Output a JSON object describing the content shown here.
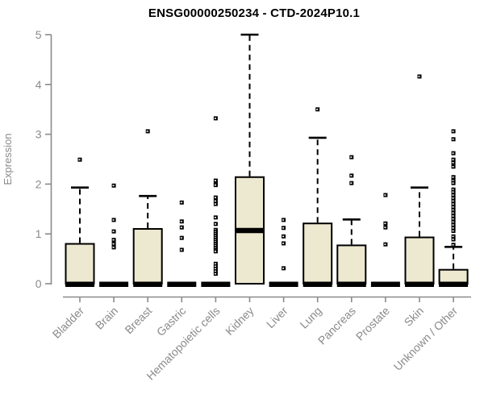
{
  "header": {
    "title": "ENSG00000250234 - CTD-2024P10.1"
  },
  "colors": {
    "box_fill": "#ede8d0",
    "box_stroke": "#000000",
    "axis": "#8a8a8a",
    "title": "#000000",
    "background": "#ffffff"
  },
  "chart_data": {
    "type": "boxplot",
    "title": "ENSG00000250234 - CTD-2024P10.1",
    "xlabel": "",
    "ylabel": "Expression",
    "ylim": [
      0,
      5
    ],
    "yticks": [
      0,
      1,
      2,
      3,
      4,
      5
    ],
    "grid": false,
    "legend": false,
    "categories": [
      "Bladder",
      "Brain",
      "Breast",
      "Gastric",
      "Hematopoietic cells",
      "Kidney",
      "Liver",
      "Lung",
      "Pancreas",
      "Prostate",
      "Skin",
      "Unknown / Other"
    ],
    "series": [
      {
        "name": "Bladder",
        "q1": 0,
        "median": 0,
        "q3": 0.8,
        "whisker_low": 0,
        "whisker_high": 1.93,
        "outliers": [
          2.49
        ]
      },
      {
        "name": "Brain",
        "q1": 0,
        "median": 0,
        "q3": 0,
        "whisker_low": 0,
        "whisker_high": 0,
        "outliers": [
          1.97,
          1.28,
          1.05,
          0.88,
          0.8,
          0.73
        ]
      },
      {
        "name": "Breast",
        "q1": 0,
        "median": 0,
        "q3": 1.1,
        "whisker_low": 0,
        "whisker_high": 1.76,
        "outliers": [
          3.06
        ]
      },
      {
        "name": "Gastric",
        "q1": 0,
        "median": 0,
        "q3": 0,
        "whisker_low": 0,
        "whisker_high": 0,
        "outliers": [
          1.63,
          1.25,
          1.13,
          0.92,
          0.68
        ]
      },
      {
        "name": "Hematopoietic cells",
        "q1": 0,
        "median": 0,
        "q3": 0,
        "whisker_low": 0,
        "whisker_high": 0,
        "outliers": [
          3.32,
          2.07,
          2.01,
          1.98,
          1.73,
          1.66,
          1.6,
          1.33,
          1.2,
          1.08,
          1.04,
          1.0,
          0.96,
          0.92,
          0.88,
          0.84,
          0.8,
          0.76,
          0.72,
          0.68,
          0.65,
          0.4,
          0.35,
          0.3,
          0.25,
          0.2
        ]
      },
      {
        "name": "Kidney",
        "q1": 0,
        "median": 1.08,
        "q3": 2.14,
        "whisker_low": 0,
        "whisker_high": 5.0,
        "outliers": []
      },
      {
        "name": "Liver",
        "q1": 0,
        "median": 0,
        "q3": 0,
        "whisker_low": 0,
        "whisker_high": 0,
        "outliers": [
          1.28,
          1.12,
          0.95,
          0.81,
          0.31
        ]
      },
      {
        "name": "Lung",
        "q1": 0,
        "median": 0,
        "q3": 1.21,
        "whisker_low": 0,
        "whisker_high": 2.93,
        "outliers": [
          3.5
        ]
      },
      {
        "name": "Pancreas",
        "q1": 0,
        "median": 0,
        "q3": 0.77,
        "whisker_low": 0,
        "whisker_high": 1.29,
        "outliers": [
          2.54,
          2.17,
          2.02
        ]
      },
      {
        "name": "Prostate",
        "q1": 0,
        "median": 0,
        "q3": 0,
        "whisker_low": 0,
        "whisker_high": 0,
        "outliers": [
          1.78,
          1.21,
          1.13,
          0.79
        ]
      },
      {
        "name": "Skin",
        "q1": 0,
        "median": 0,
        "q3": 0.93,
        "whisker_low": 0,
        "whisker_high": 1.93,
        "outliers": [
          4.16
        ]
      },
      {
        "name": "Unknown / Other",
        "q1": 0,
        "median": 0,
        "q3": 0.28,
        "whisker_low": 0,
        "whisker_high": 0.74,
        "outliers": [
          3.06,
          2.9,
          2.62,
          2.49,
          2.43,
          2.35,
          2.14,
          2.07,
          2.02,
          1.89,
          1.84,
          1.78,
          1.72,
          1.66,
          1.6,
          1.54,
          1.48,
          1.42,
          1.36,
          1.3,
          1.24,
          1.18,
          1.12,
          1.06,
          0.95,
          0.89,
          0.78
        ]
      }
    ]
  }
}
